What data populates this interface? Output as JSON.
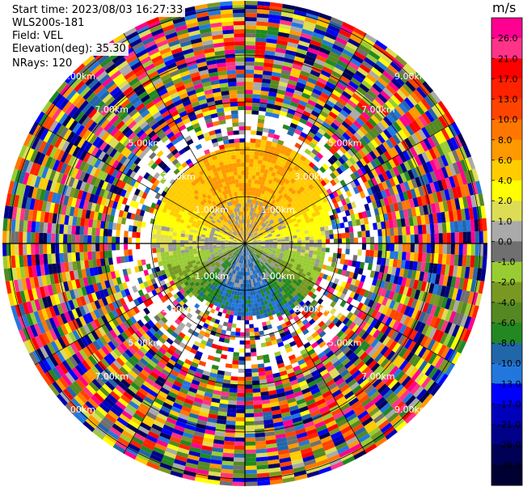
{
  "header": {
    "start_time": "Start time: 2023/08/03 16:27:33",
    "instrument": "WLS200s-181",
    "field": "Field: VEL",
    "elevation": "Elevation(deg): 35.30",
    "nrays": "NRays: 120"
  },
  "chart_data": {
    "type": "heatmap",
    "projection": "polar PPI",
    "field": "VEL",
    "units": "m/s",
    "nrays": 120,
    "range_ring_labels": [
      "1.00km",
      "3.00km",
      "5.00km",
      "7.00km",
      "9.00km"
    ],
    "colorbar": {
      "units": "m/s",
      "levels": [
        "26.0",
        "21.0",
        "17.0",
        "13.0",
        "10.0",
        "8.0",
        "6.0",
        "4.0",
        "2.0",
        "1.0",
        "0.0",
        "-1.0",
        "-2.0",
        "-4.0",
        "-6.0",
        "-8.0",
        "-10.0",
        "-13.0",
        "-17.0",
        "-21.0",
        "-26.0",
        "-30.0"
      ],
      "colors": [
        "#ff0090",
        "#ff3388",
        "#ff0000",
        "#ff2200",
        "#ff4400",
        "#ff7700",
        "#ff9900",
        "#ffcc00",
        "#ffff00",
        "#dddd55",
        "#aaaaaa",
        "#707070",
        "#99cc33",
        "#779922",
        "#558822",
        "#228822",
        "#2266aa",
        "#2277dd",
        "#0000ff",
        "#0000bb",
        "#000088",
        "#000055",
        "#000033"
      ]
    },
    "noise_colors": [
      "#ff0090",
      "#ff3388",
      "#ff0000",
      "#ff2200",
      "#ff4400",
      "#ff7700",
      "#ff9900",
      "#ffcc00",
      "#ffff00",
      "#dddd55",
      "#aaaaaa",
      "#707070",
      "#99cc33",
      "#779922",
      "#558822",
      "#228822",
      "#2266aa",
      "#2277dd",
      "#0000ff",
      "#0000bb",
      "#000088",
      "#000055"
    ]
  }
}
